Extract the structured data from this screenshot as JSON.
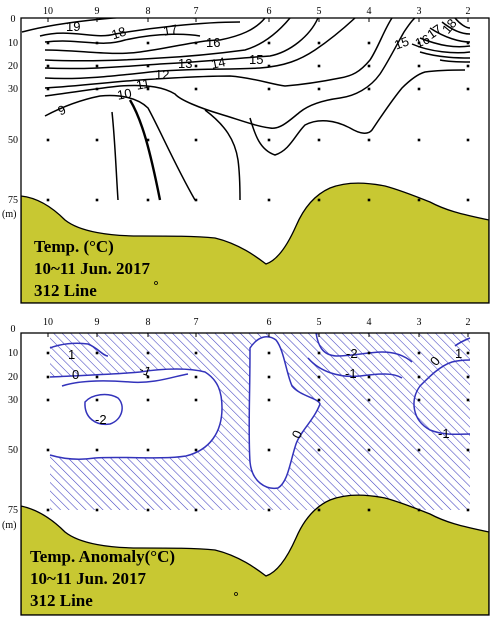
{
  "chart_data": [
    {
      "type": "contour",
      "variable_label": "Temp. (°C)",
      "date_label": "10~11 Jun. 2017",
      "line_label": "312 Line",
      "depth_unit": "(m)",
      "station_labels": [
        "10",
        "9",
        "8",
        "7",
        "6",
        "5",
        "4",
        "3",
        "2"
      ],
      "depth_ticks": [
        0,
        10,
        20,
        30,
        50,
        75
      ],
      "contour_levels": [
        9,
        10,
        11,
        12,
        13,
        14,
        15,
        16,
        17,
        18,
        19
      ],
      "contour_labels": [
        "19",
        "18",
        "17",
        "16",
        "15",
        "13",
        "12",
        "14",
        "15",
        "16",
        "17",
        "18",
        "11",
        "10",
        "9"
      ],
      "bottom_fill_color": "#c8c832",
      "line_color": "#000000"
    },
    {
      "type": "contour",
      "variable_label": "Temp. Anomaly(°C)",
      "date_label": "10~11 Jun. 2017",
      "line_label": "312 Line",
      "depth_unit": "(m)",
      "station_labels": [
        "10",
        "9",
        "8",
        "7",
        "6",
        "5",
        "4",
        "3",
        "2"
      ],
      "depth_ticks": [
        0,
        10,
        20,
        30,
        50,
        75
      ],
      "contour_levels": [
        -2,
        -1,
        0,
        1
      ],
      "contour_labels": [
        "1",
        "0",
        "-1",
        "-2",
        "-2",
        "-1",
        "0",
        "1",
        "-1",
        "0"
      ],
      "negative_region_style": "hatched",
      "bottom_fill_color": "#c8c832",
      "line_color": "#3333bb",
      "hatch_color": "#4040c0"
    }
  ]
}
